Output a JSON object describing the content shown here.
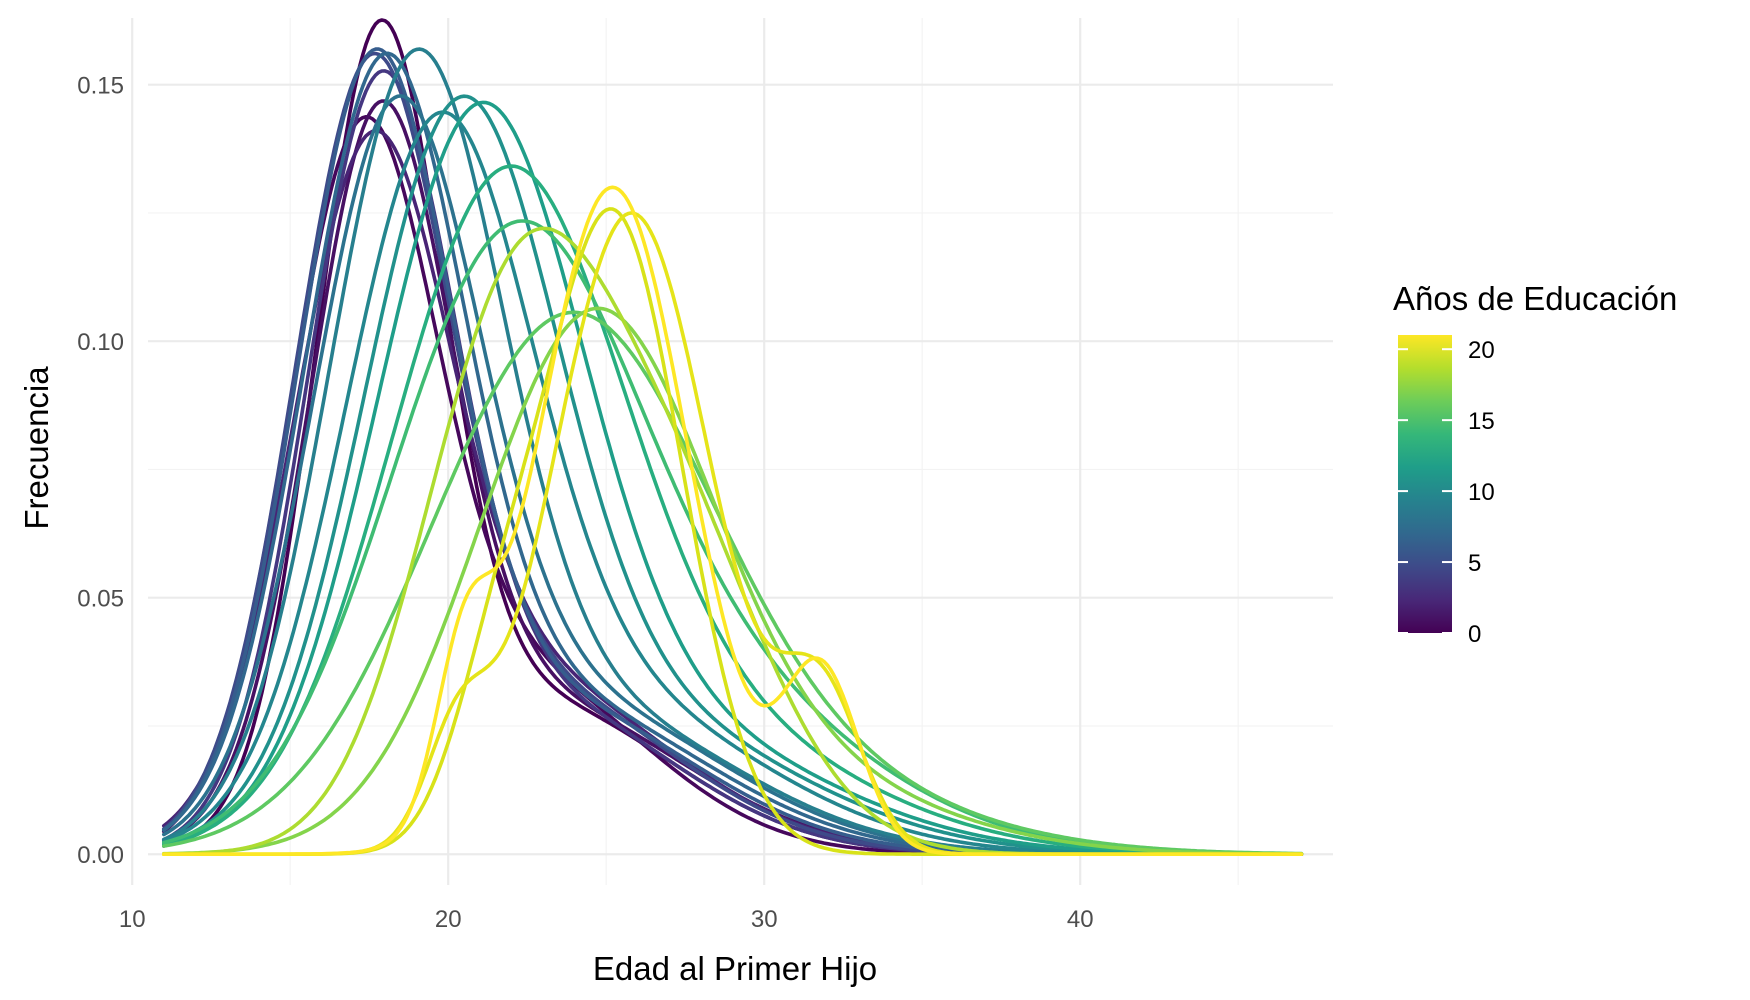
{
  "chart_data": {
    "type": "line",
    "xlabel": "Edad al Primer Hijo",
    "ylabel": "Frecuencia",
    "xlim": [
      10.5,
      48
    ],
    "ylim": [
      -0.006,
      0.163
    ],
    "x_ticks": [
      10,
      20,
      30,
      40
    ],
    "y_ticks": [
      0.0,
      0.05,
      0.1,
      0.15
    ],
    "y_tick_labels": [
      "0.00",
      "0.05",
      "0.10",
      "0.15"
    ],
    "x_minor_ticks": [
      15,
      25,
      35,
      45
    ],
    "y_minor_ticks": [
      0.025,
      0.075,
      0.125
    ],
    "grid": true,
    "x_range_data": [
      11,
      47
    ],
    "legend": {
      "title": "Años de Educación",
      "placement": "right",
      "type": "colorbar",
      "colormap": "viridis",
      "min": 0,
      "max": 21,
      "breaks": [
        0,
        5,
        10,
        15,
        20
      ],
      "break_labels": [
        "0",
        "5",
        "10",
        "15",
        "20"
      ],
      "colors": [
        "#440154",
        "#482878",
        "#3E4A89",
        "#31688E",
        "#26828E",
        "#1F9E89",
        "#35B779",
        "#6DCD59",
        "#B4DE2C",
        "#FDE725"
      ]
    },
    "series": [
      {
        "education": 0,
        "color": "#440154",
        "peaks": [
          {
            "m": 17.8,
            "s": 2.0,
            "h": 0.145
          },
          {
            "m": 22.5,
            "s": 4.5,
            "h": 0.03
          }
        ]
      },
      {
        "education": 1,
        "color": "#46085C",
        "peaks": [
          {
            "m": 17.2,
            "s": 2.3,
            "h": 0.125
          },
          {
            "m": 22,
            "s": 4.2,
            "h": 0.035
          }
        ]
      },
      {
        "education": 2,
        "color": "#471063",
        "peaks": [
          {
            "m": 17.8,
            "s": 2.2,
            "h": 0.128
          },
          {
            "m": 22.5,
            "s": 4.8,
            "h": 0.03
          }
        ]
      },
      {
        "education": 3,
        "color": "#482475",
        "peaks": [
          {
            "m": 17.5,
            "s": 2.4,
            "h": 0.118
          },
          {
            "m": 22,
            "s": 4.8,
            "h": 0.035
          }
        ]
      },
      {
        "education": 4,
        "color": "#453781",
        "peaks": [
          {
            "m": 17.8,
            "s": 2.3,
            "h": 0.135
          },
          {
            "m": 22.5,
            "s": 4.5,
            "h": 0.03
          }
        ]
      },
      {
        "education": 5,
        "color": "#3E4A89",
        "peaks": [
          {
            "m": 17.5,
            "s": 2.4,
            "h": 0.138
          },
          {
            "m": 22.5,
            "s": 4.6,
            "h": 0.032
          }
        ]
      },
      {
        "education": 6,
        "color": "#365D8D",
        "peaks": [
          {
            "m": 17.6,
            "s": 2.4,
            "h": 0.14
          },
          {
            "m": 22.8,
            "s": 4.8,
            "h": 0.03
          }
        ]
      },
      {
        "education": 7,
        "color": "#31688E",
        "peaks": [
          {
            "m": 17.9,
            "s": 2.5,
            "h": 0.138
          },
          {
            "m": 23,
            "s": 5,
            "h": 0.03
          }
        ]
      },
      {
        "education": 8,
        "color": "#2C728E",
        "peaks": [
          {
            "m": 18.3,
            "s": 2.6,
            "h": 0.13
          },
          {
            "m": 23.5,
            "s": 5,
            "h": 0.03
          }
        ]
      },
      {
        "education": 9,
        "color": "#277F8E",
        "peaks": [
          {
            "m": 18.9,
            "s": 2.7,
            "h": 0.14
          },
          {
            "m": 24,
            "s": 5,
            "h": 0.028
          }
        ]
      },
      {
        "education": 10,
        "color": "#24868E",
        "peaks": [
          {
            "m": 19.6,
            "s": 2.9,
            "h": 0.125
          },
          {
            "m": 24.5,
            "s": 5.2,
            "h": 0.03
          }
        ]
      },
      {
        "education": 11,
        "color": "#21918C",
        "peaks": [
          {
            "m": 20.3,
            "s": 3.0,
            "h": 0.128
          },
          {
            "m": 25,
            "s": 5.5,
            "h": 0.028
          }
        ]
      },
      {
        "education": 12,
        "color": "#1F9E89",
        "peaks": [
          {
            "m": 20.9,
            "s": 3.2,
            "h": 0.13
          },
          {
            "m": 26,
            "s": 5.5,
            "h": 0.025
          }
        ]
      },
      {
        "education": 13,
        "color": "#28AE80",
        "peaks": [
          {
            "m": 21.7,
            "s": 3.6,
            "h": 0.118
          },
          {
            "m": 27,
            "s": 5.5,
            "h": 0.025
          }
        ]
      },
      {
        "education": 14,
        "color": "#3FBC73",
        "peaks": [
          {
            "m": 21.8,
            "s": 3.8,
            "h": 0.1
          },
          {
            "m": 27,
            "s": 5.5,
            "h": 0.035
          }
        ]
      },
      {
        "education": 15,
        "color": "#5EC962",
        "peaks": [
          {
            "m": 23.6,
            "s": 4.3,
            "h": 0.09
          },
          {
            "m": 28,
            "s": 6,
            "h": 0.02
          }
        ]
      },
      {
        "education": 16,
        "color": "#84D44B",
        "peaks": [
          {
            "m": 24.5,
            "s": 3.6,
            "h": 0.098
          },
          {
            "m": 30,
            "s": 5,
            "h": 0.015
          }
        ]
      },
      {
        "education": 17,
        "color": "#ADDC30",
        "peaks": [
          {
            "m": 21.8,
            "s": 2.8,
            "h": 0.09
          },
          {
            "m": 26.5,
            "s": 3.3,
            "h": 0.07
          }
        ]
      },
      {
        "education": 18,
        "color": "#D8E219",
        "peaks": [
          {
            "m": 25.2,
            "s": 2.2,
            "h": 0.125
          },
          {
            "m": 21.5,
            "s": 1.4,
            "h": 0.025
          }
        ]
      },
      {
        "education": 19,
        "color": "#E5E419",
        "peaks": [
          {
            "m": 25.8,
            "s": 2.5,
            "h": 0.125
          },
          {
            "m": 31.8,
            "s": 1.3,
            "h": 0.03
          },
          {
            "m": 20.3,
            "s": 1.0,
            "h": 0.02
          }
        ]
      },
      {
        "education": 20,
        "color": "#FDE725",
        "peaks": [
          {
            "m": 25.2,
            "s": 2.4,
            "h": 0.13
          },
          {
            "m": 31.8,
            "s": 1.2,
            "h": 0.035
          },
          {
            "m": 20.5,
            "s": 0.9,
            "h": 0.03
          }
        ]
      }
    ]
  }
}
